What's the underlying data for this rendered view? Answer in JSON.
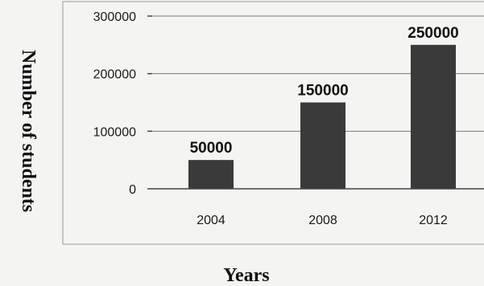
{
  "chart_data": {
    "type": "bar",
    "title": "",
    "xlabel": "Years",
    "ylabel": "Number of students",
    "categories": [
      "2004",
      "2008",
      "2012"
    ],
    "values": [
      50000,
      150000,
      250000
    ],
    "data_labels": [
      "50000",
      "150000",
      "250000"
    ],
    "ylim": [
      0,
      300000
    ],
    "yticks": [
      0,
      100000,
      200000,
      300000
    ],
    "ytick_labels": [
      "0",
      "100000",
      "200000",
      "300000"
    ],
    "grid": true,
    "legend": "none",
    "bar_color": "#3a3a3a"
  }
}
